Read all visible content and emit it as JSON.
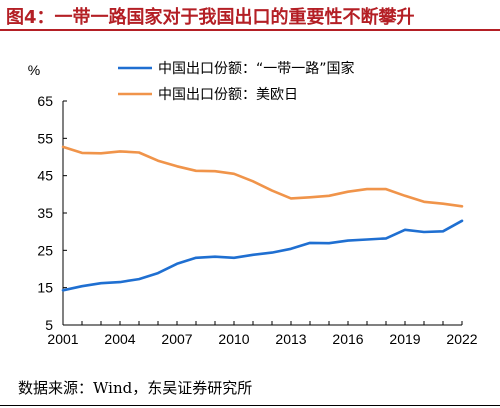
{
  "header": {
    "title": "图4：一带一路国家对于我国出口的重要性不断攀升"
  },
  "footer": {
    "source": "数据来源：Wind，东吴证券研究所"
  },
  "chart_data": {
    "type": "line",
    "title": "",
    "xlabel": "",
    "ylabel": "%",
    "ylim": [
      5,
      65
    ],
    "yticks": [
      5,
      15,
      25,
      35,
      45,
      55,
      65
    ],
    "xlim": [
      2001,
      2022
    ],
    "xticks": [
      2001,
      2004,
      2007,
      2010,
      2013,
      2016,
      2019,
      2022
    ],
    "grid": false,
    "legend": "top-center",
    "x": [
      2001,
      2002,
      2003,
      2004,
      2005,
      2006,
      2007,
      2008,
      2009,
      2010,
      2011,
      2012,
      2013,
      2014,
      2015,
      2016,
      2017,
      2018,
      2019,
      2020,
      2021,
      2022
    ],
    "series": [
      {
        "name": "中国出口份额：“一带一路”国家",
        "color": "#1F6FD1",
        "values": [
          14.3,
          15.4,
          16.2,
          16.5,
          17.3,
          18.9,
          21.4,
          23.0,
          23.3,
          23.0,
          23.8,
          24.4,
          25.4,
          27.0,
          26.9,
          27.6,
          27.9,
          28.2,
          30.5,
          29.9,
          30.1,
          32.9
        ]
      },
      {
        "name": "中国出口份额：美欧日",
        "color": "#F0944A",
        "values": [
          52.7,
          51.1,
          51.0,
          51.5,
          51.2,
          49.0,
          47.5,
          46.3,
          46.2,
          45.5,
          43.5,
          41.0,
          38.9,
          39.2,
          39.6,
          40.7,
          41.4,
          41.4,
          39.6,
          38.0,
          37.5,
          36.8
        ]
      }
    ]
  }
}
